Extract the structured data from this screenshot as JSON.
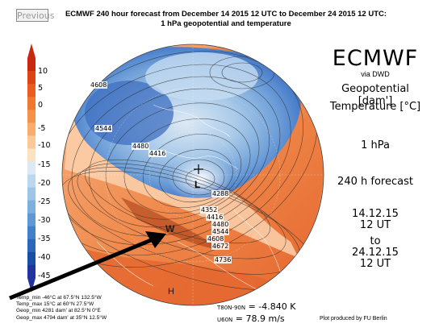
{
  "nav": {
    "previous_label": "Previous"
  },
  "header": {
    "title_line1": "ECMWF 240 hour forecast from December 14 2015 12 UTC to December 24 2015 12 UTC:",
    "title_line2": "1 hPa geopotential and temperature"
  },
  "panel": {
    "brand": "ECMWF",
    "via": "via DWD",
    "geopotential_label": "Geopotential [dam']",
    "temperature_label": "Temperature [°C]",
    "level": "1 hPa",
    "forecast": "240 h forecast",
    "start_date": "14.12.15",
    "start_time": "12 UT",
    "to": "to",
    "end_date": "24.12.15",
    "end_time": "12 UT"
  },
  "colorbar": {
    "ticks": [
      "10",
      "5",
      "0",
      "-5",
      "-10",
      "-15",
      "-20",
      "-25",
      "-30",
      "-35",
      "-40",
      "-45"
    ],
    "colors": [
      "#c8290e",
      "#dd4413",
      "#ea5c20",
      "#f0772f",
      "#f59249",
      "#f8ad6c",
      "#fbc995",
      "#fbe3c2",
      "#ddeaf6",
      "#bcd8ef",
      "#9cc5e8",
      "#7dafdf",
      "#5e98d5",
      "#4280c8",
      "#2b66b8",
      "#1a4ea4",
      "#2233a0"
    ]
  },
  "map_labels": {
    "contours": [
      "4608",
      "4544",
      "4480",
      "4416",
      "4288",
      "4352",
      "4416",
      "4480",
      "4544",
      "4608",
      "4672",
      "4736"
    ],
    "low_marker": "L",
    "low_value": "4288",
    "warm_marker": "W",
    "high_marker": "H"
  },
  "stats": [
    "Temp_min  -46°C at 67.5°N 132.5°W",
    "Temp_max  15°C at 60°N 27.5°W",
    "Geop_min  4281 dam' at 82.5°N 0°E",
    "Geop_max  4794 dam' at 35°N 12.5°W"
  ],
  "wind": {
    "t_label": "T80N-90N",
    "t_value": "= -4.840 K",
    "u_label": "U60N",
    "u_value": "= 78.9 m/s"
  },
  "credit": "Plot produced by FU Berlin"
}
